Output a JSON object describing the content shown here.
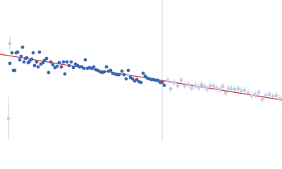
{
  "chart_data": {
    "type": "scatter",
    "xlim": [
      0,
      400
    ],
    "ylim": [
      0,
      200
    ],
    "vline": 230,
    "vline_color": "#c8d2e6",
    "fit": {
      "x": [
        0,
        400
      ],
      "values": [
        123,
        58
      ],
      "color": "#d03a3a"
    },
    "series": [
      {
        "color": "#3b68b4",
        "x": [
          14,
          17,
          19,
          21,
          23,
          25,
          28,
          30,
          32,
          34,
          36,
          38,
          40,
          42,
          45,
          47,
          49,
          52,
          54,
          56,
          58,
          61,
          63,
          66,
          69,
          72,
          75,
          78,
          81,
          84,
          87,
          90,
          92,
          95,
          98,
          101,
          104,
          107,
          110,
          113,
          116,
          119,
          121,
          124,
          127,
          130,
          133,
          136,
          139,
          142,
          145,
          148,
          151,
          154,
          157,
          160,
          163,
          166,
          169,
          173,
          176,
          179,
          182,
          185,
          188,
          191,
          194,
          197,
          200,
          203,
          206,
          209,
          212,
          215,
          218,
          221,
          224,
          227,
          230,
          233
        ],
        "values": [
          110,
          125,
          100,
          100,
          125,
          126,
          115,
          120,
          133,
          112,
          117,
          118,
          111,
          113,
          116,
          125,
          107,
          112,
          105,
          126,
          109,
          111,
          114,
          117,
          97,
          112,
          108,
          104,
          106,
          111,
          105,
          112,
          95,
          112,
          107,
          112,
          104,
          109,
          107,
          105,
          105,
          103,
          115,
          103,
          104,
          103,
          105,
          101,
          100,
          98,
          97,
          98,
          105,
          99,
          100,
          96,
          95,
          94,
          94,
          99,
          94,
          88,
          100,
          90,
          88,
          85,
          87,
          84,
          83,
          96,
          92,
          89,
          88,
          87,
          87,
          86,
          86,
          83,
          83,
          79
        ]
      },
      {
        "color": "#c3cde4",
        "x": [
          12,
          14,
          238,
          242,
          247,
          252,
          257,
          262,
          267,
          272,
          277,
          282,
          286,
          290,
          294,
          298,
          303,
          307,
          312,
          316,
          320,
          324,
          328,
          333,
          338,
          342,
          347,
          352,
          357,
          362,
          367,
          372,
          377,
          382,
          387,
          392,
          397
        ],
        "values": [
          32,
          138,
          86,
          74,
          83,
          78,
          86,
          78,
          80,
          75,
          78,
          76,
          80,
          77,
          74,
          78,
          78,
          75,
          73,
          77,
          68,
          74,
          74,
          73,
          74,
          71,
          72,
          68,
          64,
          66,
          69,
          59,
          64,
          66,
          63,
          64,
          60
        ],
        "errors": [
          30,
          10,
          5,
          5,
          5,
          5,
          5,
          5,
          5,
          5,
          5,
          5,
          5,
          5,
          5,
          5,
          5,
          5,
          5,
          5,
          5,
          5,
          5,
          5,
          5,
          5,
          5,
          5,
          5,
          5,
          5,
          5,
          5,
          5,
          5,
          5,
          5
        ]
      }
    ]
  }
}
